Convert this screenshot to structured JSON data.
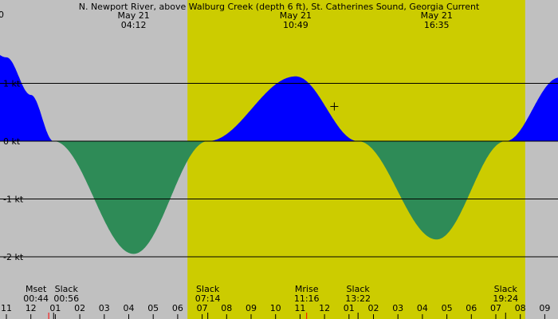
{
  "chart_data": {
    "type": "area",
    "title": "N. Newport River, above Walburg Creek (depth 6 ft), St. Catherines Sound, Georgia Current",
    "corner_label": "0",
    "xlabel": "",
    "ylabel": "",
    "x_unit": "hour",
    "x_range": [
      23,
      33.3
    ],
    "ylim": [
      -2.35,
      1.45
    ],
    "y_ticks": [
      {
        "value": 1,
        "label": "1 kt"
      },
      {
        "value": 0,
        "label": "0 kt"
      },
      {
        "value": -1,
        "label": "-1 kt"
      },
      {
        "value": -2,
        "label": "-2 kt"
      }
    ],
    "x_ticks": [
      {
        "x": 23,
        "label": "11"
      },
      {
        "x": 24,
        "label": "12"
      },
      {
        "x": 25,
        "label": "01"
      },
      {
        "x": 26,
        "label": "02"
      },
      {
        "x": 27,
        "label": "03"
      },
      {
        "x": 28,
        "label": "04"
      },
      {
        "x": 29,
        "label": "05"
      },
      {
        "x": 30,
        "label": "06"
      },
      {
        "x": 31,
        "label": "07"
      },
      {
        "x": 32,
        "label": "08"
      },
      {
        "x": 33,
        "label": "09"
      },
      {
        "x": 34,
        "label": "10"
      },
      {
        "x": 35,
        "label": "11"
      },
      {
        "x": 36,
        "label": "12"
      },
      {
        "x": 37,
        "label": "01"
      },
      {
        "x": 38,
        "label": "02"
      },
      {
        "x": 39,
        "label": "03"
      },
      {
        "x": 40,
        "label": "04"
      },
      {
        "x": 41,
        "label": "05"
      },
      {
        "x": 42,
        "label": "06"
      },
      {
        "x": 43,
        "label": "07"
      },
      {
        "x": 44,
        "label": "08"
      },
      {
        "x": 45,
        "label": "09"
      }
    ],
    "daylight": {
      "start": 30.4,
      "end": 44.2
    },
    "extremes": [
      {
        "x": 28.2,
        "date": "May 21",
        "time": "04:12",
        "value": -1.95
      },
      {
        "x": 34.82,
        "date": "May 21",
        "time": "10:49",
        "value": 1.12
      },
      {
        "x": 40.58,
        "date": "May 21",
        "time": "16:35",
        "value": -1.7
      }
    ],
    "slacks": [
      {
        "x": 24.93,
        "label": "Slack",
        "time": "00:56"
      },
      {
        "x": 31.23,
        "label": "Slack",
        "time": "07:14"
      },
      {
        "x": 37.37,
        "label": "Slack",
        "time": "13:22"
      },
      {
        "x": 43.4,
        "label": "Slack",
        "time": "19:24"
      }
    ],
    "moon_events": [
      {
        "x": 24.73,
        "label": "Mset",
        "time": "00:44"
      },
      {
        "x": 35.27,
        "label": "Mrise",
        "time": "11:16"
      }
    ],
    "curve": [
      {
        "x": 22.0,
        "y": 1.7
      },
      {
        "x": 23.0,
        "y": 1.45
      },
      {
        "x": 24.0,
        "y": 0.8
      },
      {
        "x": 24.93,
        "y": 0.0
      },
      {
        "x": 28.2,
        "y": -1.95
      },
      {
        "x": 31.23,
        "y": 0.0
      },
      {
        "x": 34.82,
        "y": 1.12
      },
      {
        "x": 37.37,
        "y": 0.0
      },
      {
        "x": 40.58,
        "y": -1.7
      },
      {
        "x": 43.4,
        "y": 0.0
      },
      {
        "x": 45.6,
        "y": 1.1
      },
      {
        "x": 46.5,
        "y": 1.3
      }
    ],
    "marker_point": {
      "x": 36.4,
      "y": 0.6
    },
    "colors": {
      "background": "#c0c0c0",
      "daylight": "#cccc00",
      "flood": "#0000ff",
      "ebb": "#2e8b57",
      "moon_tick": "#ff0000"
    }
  }
}
